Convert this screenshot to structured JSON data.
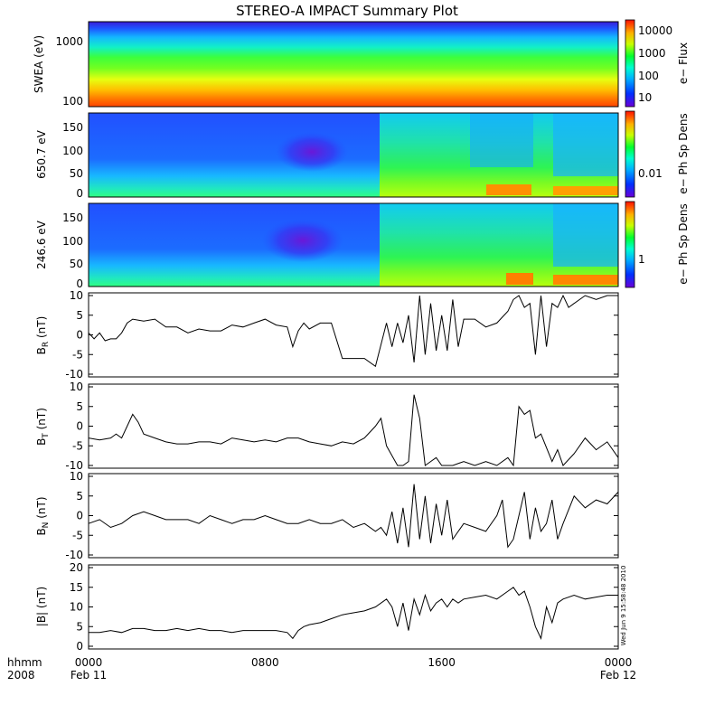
{
  "title": "STEREO-A IMPACT Summary Plot",
  "timestamp": "Wed Jun 9 15:58:48 2010",
  "xaxis": {
    "row1_label": "hhmm",
    "row2_label": "2008",
    "ticks": [
      {
        "t": 0,
        "top": "0000",
        "bottom": "Feb 11"
      },
      {
        "t": 8,
        "top": "0800",
        "bottom": ""
      },
      {
        "t": 16,
        "top": "1600",
        "bottom": ""
      },
      {
        "t": 24,
        "top": "0000",
        "bottom": "Feb 12"
      }
    ]
  },
  "panels": {
    "swea": {
      "ylabel": "SWEA (eV)",
      "yticks": [
        "1000",
        "100"
      ],
      "colorbar_label": "e− Flux",
      "colorbar_ticks": [
        "10000",
        "1000",
        "100",
        "10"
      ]
    },
    "pad1": {
      "ylabel": "650.7 eV",
      "yticks": [
        "150",
        "100",
        "50",
        "0"
      ],
      "colorbar_label": "e− Ph Sp Dens",
      "colorbar_ticks": [
        "0.01"
      ]
    },
    "pad2": {
      "ylabel": "246.6 eV",
      "yticks": [
        "150",
        "100",
        "50",
        "0"
      ],
      "colorbar_label": "e− Ph Sp Dens",
      "colorbar_ticks": [
        "1"
      ]
    }
  },
  "chart_data": [
    {
      "type": "heatmap",
      "title": "STEREO-A IMPACT Summary Plot",
      "ylabel": "SWEA (eV)",
      "yscale": "log",
      "ylim": [
        100,
        2000
      ],
      "colorbar": {
        "label": "e− Flux",
        "scale": "log",
        "ticks": [
          10,
          100,
          1000,
          10000
        ]
      }
    },
    {
      "type": "heatmap",
      "ylabel": "650.7 eV",
      "ylim": [
        0,
        180
      ],
      "colorbar": {
        "label": "e− Ph Sp Dens",
        "ticks": [
          0.01
        ]
      }
    },
    {
      "type": "heatmap",
      "ylabel": "246.6 eV",
      "ylim": [
        0,
        180
      ],
      "colorbar": {
        "label": "e− Ph Sp Dens",
        "ticks": [
          1
        ]
      }
    },
    {
      "type": "line",
      "ylabel": "B_R (nT)",
      "ylim": [
        -10,
        10
      ],
      "yticks": [
        -10,
        -5,
        0,
        5,
        10
      ],
      "xlim": [
        0,
        24
      ],
      "x": [
        0,
        0.25,
        0.5,
        0.75,
        1,
        1.25,
        1.5,
        1.75,
        2,
        2.5,
        3,
        3.5,
        4,
        4.5,
        5,
        5.5,
        6,
        6.5,
        7,
        7.5,
        8,
        8.5,
        9,
        9.25,
        9.5,
        9.75,
        10,
        10.5,
        11,
        11.5,
        12,
        12.5,
        13,
        13.5,
        13.75,
        14,
        14.25,
        14.5,
        14.75,
        15,
        15.25,
        15.5,
        15.75,
        16,
        16.25,
        16.5,
        16.75,
        17,
        17.5,
        18,
        18.5,
        19,
        19.25,
        19.5,
        19.75,
        20,
        20.25,
        20.5,
        20.75,
        21,
        21.25,
        21.5,
        21.75,
        22,
        22.5,
        23,
        23.5,
        24
      ],
      "y": [
        0.5,
        -1,
        0.5,
        -1.5,
        -1,
        -1,
        0.5,
        3,
        4,
        3.5,
        4,
        2,
        2,
        0.5,
        1.5,
        1,
        1,
        2.5,
        2,
        3,
        4,
        2.5,
        2,
        -3,
        1,
        3,
        1.5,
        3,
        3,
        -6,
        -6,
        -6,
        -8,
        3,
        -3,
        3,
        -2,
        5,
        -7,
        10,
        -5,
        8,
        -4,
        5,
        -4,
        9,
        -3,
        4,
        4,
        2,
        3,
        6,
        9,
        10,
        7,
        8,
        -5,
        10,
        -3,
        8,
        7,
        10,
        7,
        8,
        10,
        9,
        10,
        10
      ]
    },
    {
      "type": "line",
      "ylabel": "B_T (nT)",
      "ylim": [
        -10,
        10
      ],
      "yticks": [
        -10,
        -5,
        0,
        5,
        10
      ],
      "xlim": [
        0,
        24
      ],
      "x": [
        0,
        0.5,
        1,
        1.25,
        1.5,
        1.75,
        2,
        2.25,
        2.5,
        3,
        3.5,
        4,
        4.5,
        5,
        5.5,
        6,
        6.5,
        7,
        7.5,
        8,
        8.5,
        9,
        9.5,
        10,
        10.5,
        11,
        11.5,
        12,
        12.5,
        13,
        13.25,
        13.5,
        14,
        14.25,
        14.5,
        14.75,
        15,
        15.25,
        15.5,
        15.75,
        16,
        16.25,
        16.5,
        17,
        17.5,
        18,
        18.5,
        19,
        19.25,
        19.5,
        19.75,
        20,
        20.25,
        20.5,
        21,
        21.25,
        21.5,
        22,
        22.5,
        23,
        23.5,
        24
      ],
      "y": [
        -3,
        -3.5,
        -3,
        -2,
        -3,
        0,
        3,
        1,
        -2,
        -3,
        -4,
        -4.5,
        -4.5,
        -4,
        -4,
        -4.5,
        -3,
        -3.5,
        -4,
        -3.5,
        -4,
        -3,
        -3,
        -4,
        -4.5,
        -5,
        -4,
        -4.5,
        -3,
        0,
        2,
        -5,
        -10,
        -10,
        -9,
        8,
        2,
        -10,
        -9,
        -8,
        -10,
        -10,
        -10,
        -9,
        -10,
        -9,
        -10,
        -8,
        -10,
        5,
        3,
        4,
        -3,
        -2,
        -9,
        -6,
        -10,
        -7,
        -3,
        -6,
        -4,
        -8
      ]
    },
    {
      "type": "line",
      "ylabel": "B_N (nT)",
      "ylim": [
        -10,
        10
      ],
      "yticks": [
        -10,
        -5,
        0,
        5,
        10
      ],
      "xlim": [
        0,
        24
      ],
      "x": [
        0,
        0.5,
        1,
        1.5,
        2,
        2.5,
        3,
        3.5,
        4,
        4.5,
        5,
        5.5,
        6,
        6.5,
        7,
        7.5,
        8,
        8.5,
        9,
        9.5,
        10,
        10.5,
        11,
        11.5,
        12,
        12.5,
        13,
        13.25,
        13.5,
        13.75,
        14,
        14.25,
        14.5,
        14.75,
        15,
        15.25,
        15.5,
        15.75,
        16,
        16.25,
        16.5,
        17,
        17.5,
        18,
        18.5,
        18.75,
        19,
        19.25,
        19.5,
        19.75,
        20,
        20.25,
        20.5,
        20.75,
        21,
        21.25,
        21.5,
        22,
        22.5,
        23,
        23.5,
        24
      ],
      "y": [
        -2,
        -1,
        -3,
        -2,
        0,
        1,
        0,
        -1,
        -1,
        -1,
        -2,
        0,
        -1,
        -2,
        -1,
        -1,
        0,
        -1,
        -2,
        -2,
        -1,
        -2,
        -2,
        -1,
        -3,
        -2,
        -4,
        -3,
        -5,
        1,
        -7,
        2,
        -8,
        8,
        -6,
        5,
        -7,
        3,
        -5,
        4,
        -6,
        -2,
        -3,
        -4,
        0,
        4,
        -8,
        -6,
        0,
        6,
        -6,
        2,
        -4,
        -2,
        4,
        -6,
        -2,
        5,
        2,
        4,
        3,
        6
      ]
    },
    {
      "type": "line",
      "ylabel": "|B| (nT)",
      "ylim": [
        0,
        20
      ],
      "yticks": [
        0,
        5,
        10,
        15,
        20
      ],
      "xlim": [
        0,
        24
      ],
      "x": [
        0,
        0.5,
        1,
        1.5,
        2,
        2.5,
        3,
        3.5,
        4,
        4.5,
        5,
        5.5,
        6,
        6.5,
        7,
        7.5,
        8,
        8.5,
        9,
        9.25,
        9.5,
        9.75,
        10,
        10.5,
        11,
        11.5,
        12,
        12.5,
        13,
        13.5,
        13.75,
        14,
        14.25,
        14.5,
        14.75,
        15,
        15.25,
        15.5,
        15.75,
        16,
        16.25,
        16.5,
        16.75,
        17,
        17.5,
        18,
        18.5,
        19,
        19.25,
        19.5,
        19.75,
        20,
        20.25,
        20.5,
        20.75,
        21,
        21.25,
        21.5,
        22,
        22.5,
        23,
        23.5,
        24
      ],
      "y": [
        3.5,
        3.5,
        4,
        3.5,
        4.5,
        4.5,
        4,
        4,
        4.5,
        4,
        4.5,
        4,
        4,
        3.5,
        4,
        4,
        4,
        4,
        3.5,
        2,
        4,
        5,
        5.5,
        6,
        7,
        8,
        8.5,
        9,
        10,
        12,
        10,
        5,
        11,
        4,
        12,
        8,
        13,
        9,
        11,
        12,
        10,
        12,
        11,
        12,
        12.5,
        13,
        12,
        14,
        15,
        13,
        14,
        10,
        5,
        2,
        10,
        6,
        11,
        12,
        13,
        12,
        12.5,
        13,
        13
      ]
    }
  ]
}
